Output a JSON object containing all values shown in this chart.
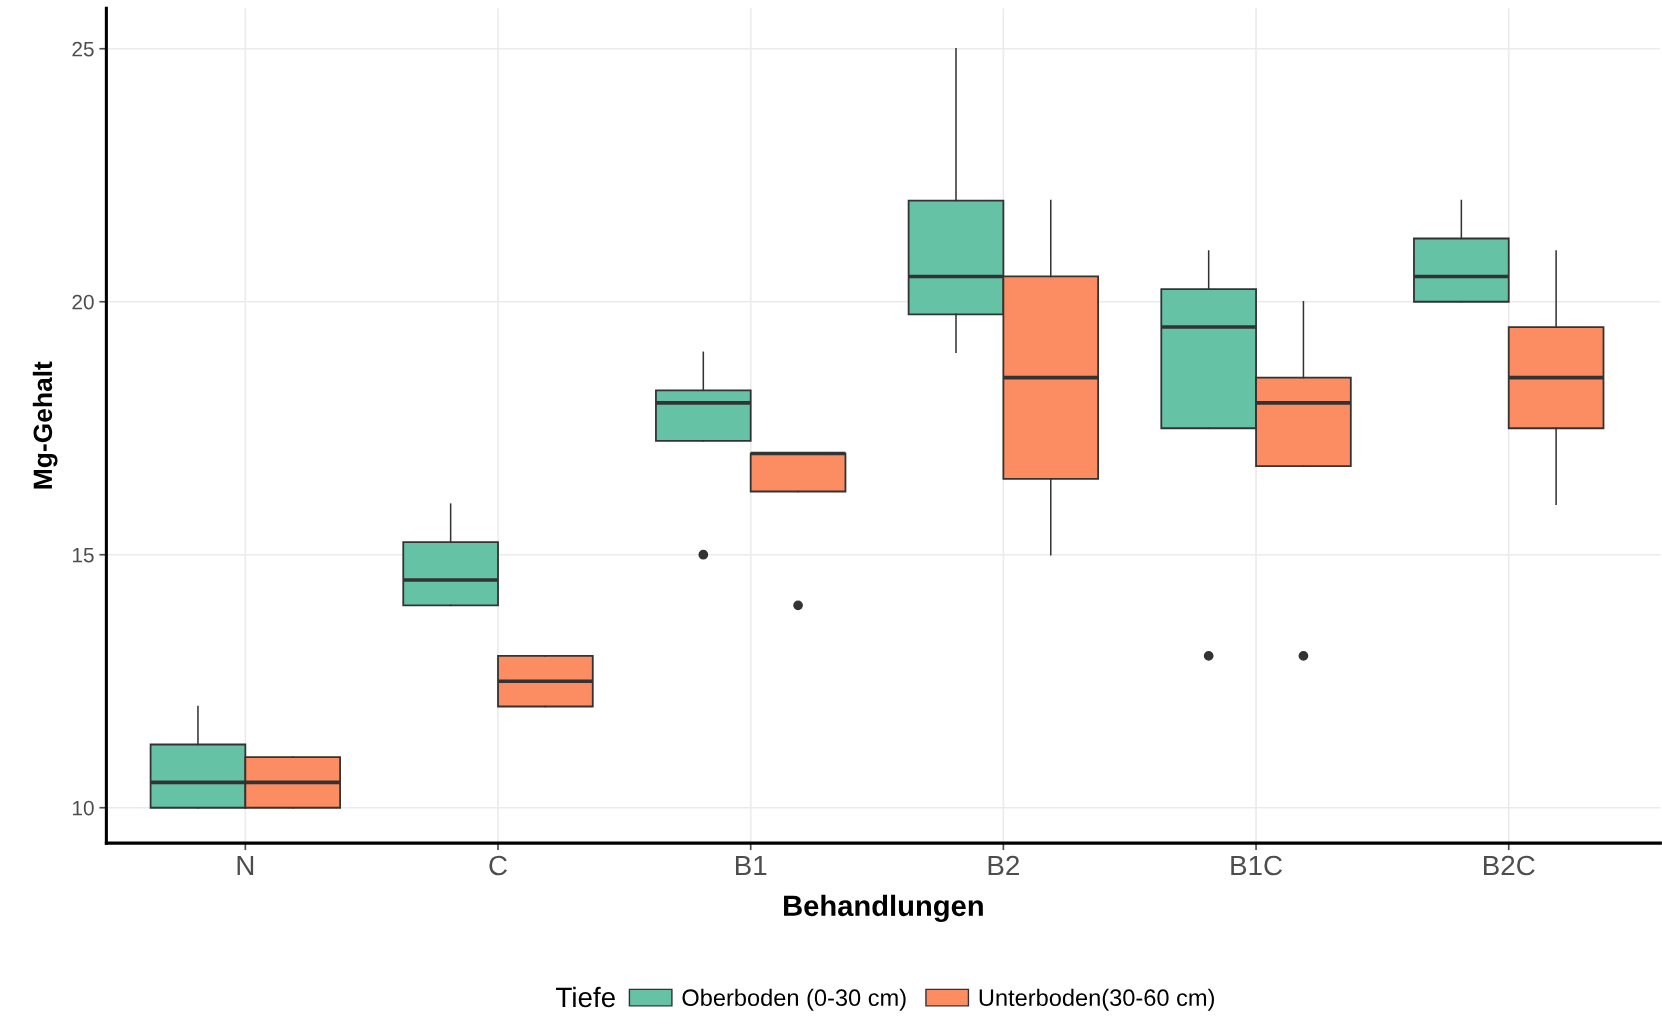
{
  "chart_data": {
    "type": "box",
    "xlabel": "Behandlungen",
    "ylabel": "Mg-Gehalt",
    "legend_title": "Tiefe",
    "categories": [
      "N",
      "C",
      "B1",
      "B2",
      "B1C",
      "B2C"
    ],
    "ylim": [
      9.3,
      25.8
    ],
    "yticks": [
      10,
      15,
      20,
      25
    ],
    "grid": true,
    "legend": "bottom",
    "series": [
      {
        "name": "Oberboden (0-30 cm)",
        "color": "#66c2a5",
        "boxes": [
          {
            "low": 10,
            "q1": 10,
            "median": 10.5,
            "q3": 11.25,
            "high": 12
          },
          {
            "low": 14,
            "q1": 14,
            "median": 14.5,
            "q3": 15.25,
            "high": 16
          },
          {
            "low": 17.25,
            "q1": 17.25,
            "median": 18,
            "q3": 18.25,
            "high": 19,
            "outliers": [
              15
            ]
          },
          {
            "low": 19,
            "q1": 19.75,
            "median": 20.5,
            "q3": 22,
            "high": 25
          },
          {
            "low": 17.5,
            "q1": 17.5,
            "median": 19.5,
            "q3": 20.25,
            "high": 21,
            "outliers": [
              13
            ]
          },
          {
            "low": 20,
            "q1": 20,
            "median": 20.5,
            "q3": 21.25,
            "high": 22
          }
        ]
      },
      {
        "name": "Unterboden(30-60 cm)",
        "color": "#fc8d62",
        "boxes": [
          {
            "low": 10,
            "q1": 10,
            "median": 10.5,
            "q3": 11,
            "high": 11
          },
          {
            "low": 12,
            "q1": 12,
            "median": 12.5,
            "q3": 13,
            "high": 13
          },
          {
            "low": 16.25,
            "q1": 16.25,
            "median": 17,
            "q3": 17,
            "high": 17,
            "outliers": [
              14
            ]
          },
          {
            "low": 15,
            "q1": 16.5,
            "median": 18.5,
            "q3": 20.5,
            "high": 22
          },
          {
            "low": 16.75,
            "q1": 16.75,
            "median": 18,
            "q3": 18.5,
            "high": 20,
            "outliers": [
              13
            ]
          },
          {
            "low": 16,
            "q1": 17.5,
            "median": 18.5,
            "q3": 19.5,
            "high": 21
          }
        ]
      }
    ]
  }
}
